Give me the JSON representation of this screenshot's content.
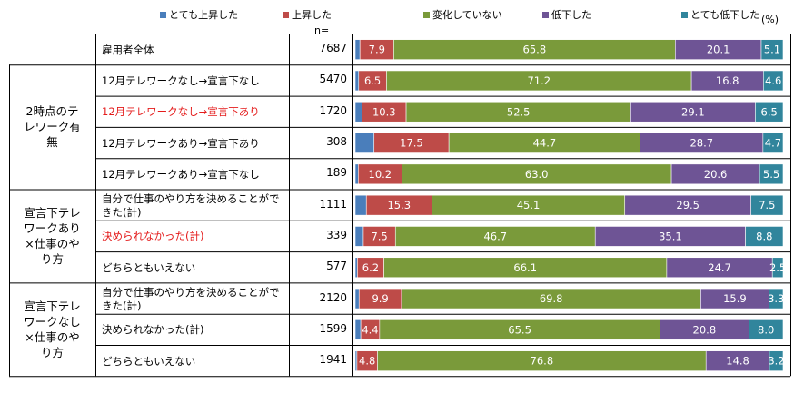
{
  "legend": {
    "pct_unit": "(%)",
    "n_header": "n="
  },
  "groups": [
    {
      "label": "2時点のテレワーク有無"
    },
    {
      "label": "宣言下テレワークあり×仕事のやり方"
    },
    {
      "label": "宣言下テレワークなし×仕事のやり方"
    }
  ],
  "chart_data": {
    "type": "bar",
    "orientation": "horizontal",
    "stacked": "100%",
    "xlim": [
      0,
      100
    ],
    "series": [
      {
        "name": "とても上昇した",
        "color": "#4a7ebb"
      },
      {
        "name": "上昇した",
        "color": "#be4b48"
      },
      {
        "name": "変化していない",
        "color": "#7a9a3a"
      },
      {
        "name": "低下した",
        "color": "#6e5495"
      },
      {
        "name": "とても低下した",
        "color": "#31859c"
      }
    ],
    "rows": [
      {
        "label": "雇用者全体",
        "n": "7687",
        "highlight": false,
        "values": [
          1.1,
          7.9,
          65.8,
          20.1,
          5.1
        ],
        "labels": [
          "",
          "7.9",
          "65.8",
          "20.1",
          "5.1"
        ]
      },
      {
        "label": "12月テレワークなし→宣言下なし",
        "n": "5470",
        "highlight": false,
        "values": [
          0.8,
          6.5,
          71.2,
          16.8,
          4.6
        ],
        "labels": [
          "",
          "6.5",
          "71.2",
          "16.8",
          "4.6"
        ]
      },
      {
        "label": "12月テレワークなし→宣言下あり",
        "n": "1720",
        "highlight": true,
        "values": [
          1.6,
          10.3,
          52.5,
          29.1,
          6.5
        ],
        "labels": [
          "",
          "10.3",
          "52.5",
          "29.1",
          "6.5"
        ]
      },
      {
        "label": "12月テレワークあり→宣言下あり",
        "n": "308",
        "highlight": false,
        "values": [
          4.4,
          17.5,
          44.7,
          28.7,
          4.7
        ],
        "labels": [
          "",
          "17.5",
          "44.7",
          "28.7",
          "4.7"
        ]
      },
      {
        "label": "12月テレワークあり→宣言下なし",
        "n": "189",
        "highlight": false,
        "values": [
          0.7,
          10.2,
          63.0,
          20.6,
          5.5
        ],
        "labels": [
          "",
          "10.2",
          "63.0",
          "20.6",
          "5.5"
        ]
      },
      {
        "label": "自分で仕事のやり方を決めることができた(計)",
        "n": "1111",
        "highlight": false,
        "values": [
          2.6,
          15.3,
          45.1,
          29.5,
          7.5
        ],
        "labels": [
          "",
          "15.3",
          "45.1",
          "29.5",
          "7.5"
        ]
      },
      {
        "label": "決められなかった(計)",
        "n": "339",
        "highlight": true,
        "values": [
          1.9,
          7.5,
          46.7,
          35.1,
          8.8
        ],
        "labels": [
          "",
          "7.5",
          "46.7",
          "35.1",
          "8.8"
        ]
      },
      {
        "label": "どちらともいえない",
        "n": "577",
        "highlight": false,
        "values": [
          0.5,
          6.2,
          66.1,
          24.7,
          2.5
        ],
        "labels": [
          "",
          "6.2",
          "66.1",
          "24.7",
          "2.5"
        ]
      },
      {
        "label": "自分で仕事のやり方を決めることができた(計)",
        "n": "2120",
        "highlight": false,
        "values": [
          0.9,
          9.9,
          69.8,
          15.9,
          3.3
        ],
        "labels": [
          "",
          "9.9",
          "69.8",
          "15.9",
          "3.3"
        ]
      },
      {
        "label": "決められなかった(計)",
        "n": "1599",
        "highlight": false,
        "values": [
          1.3,
          4.4,
          65.5,
          20.8,
          8.0
        ],
        "labels": [
          "",
          "4.4",
          "65.5",
          "20.8",
          "8.0"
        ]
      },
      {
        "label": "どちらともいえない",
        "n": "1941",
        "highlight": false,
        "values": [
          0.4,
          4.8,
          76.8,
          14.8,
          3.2
        ],
        "labels": [
          "",
          "4.8",
          "76.8",
          "14.8",
          "3.2"
        ]
      }
    ]
  }
}
